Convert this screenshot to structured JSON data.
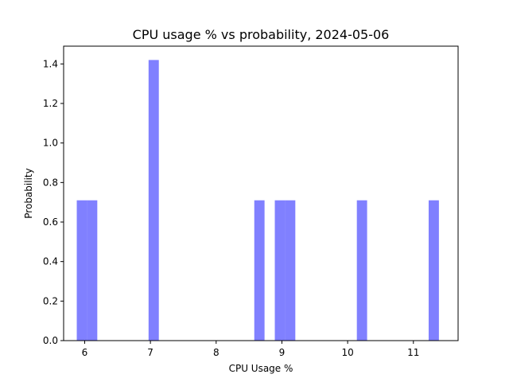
{
  "chart_data": {
    "type": "bar",
    "title": "CPU usage % vs probability, 2024-05-06",
    "xlabel": "CPU Usage %",
    "ylabel": "Probability",
    "xlim": [
      5.68,
      11.68
    ],
    "ylim": [
      0,
      1.49
    ],
    "xticks": [
      6,
      7,
      8,
      9,
      10,
      11
    ],
    "yticks": [
      0.0,
      0.2,
      0.4,
      0.6,
      0.8,
      1.0,
      1.2,
      1.4
    ],
    "bin_width": 0.156,
    "bar_color": "#8080ff",
    "bins": [
      {
        "start": 5.88,
        "end": 6.036,
        "value": 0.71
      },
      {
        "start": 6.036,
        "end": 6.192,
        "value": 0.71
      },
      {
        "start": 6.972,
        "end": 7.128,
        "value": 1.42
      },
      {
        "start": 8.58,
        "end": 8.736,
        "value": 0.71
      },
      {
        "start": 8.892,
        "end": 9.048,
        "value": 0.71
      },
      {
        "start": 9.048,
        "end": 9.204,
        "value": 0.71
      },
      {
        "start": 10.14,
        "end": 10.296,
        "value": 0.71
      },
      {
        "start": 11.232,
        "end": 11.388,
        "value": 0.71
      }
    ]
  }
}
